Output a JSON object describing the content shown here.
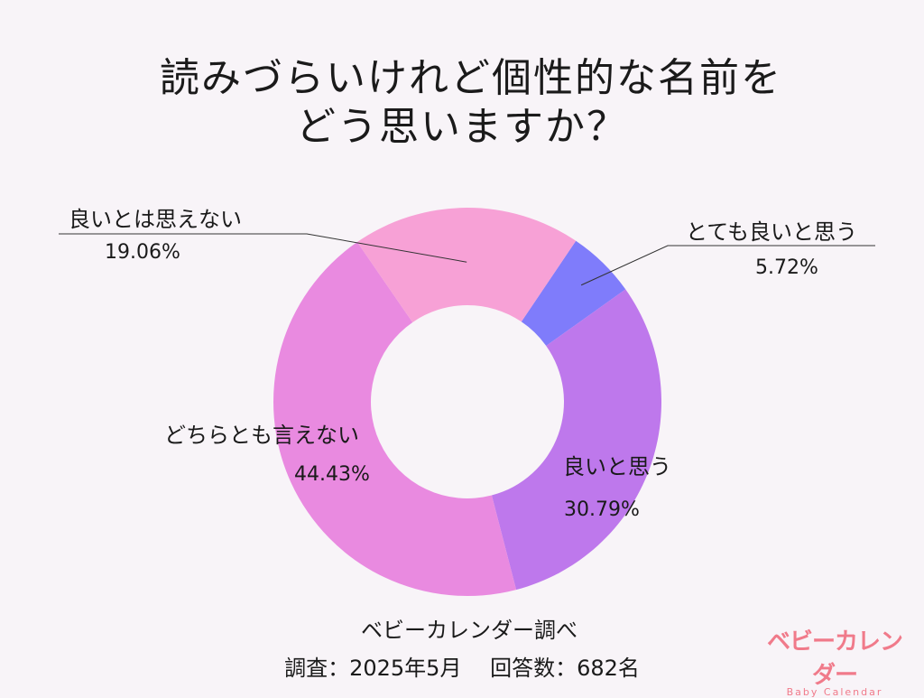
{
  "title_line1": "読みづらいけれど個性的な名前を",
  "title_line2": "どう思いますか？",
  "chart_data": {
    "type": "pie",
    "title": "読みづらいけれど個性的な名前をどう思いますか？",
    "slices": [
      {
        "label": "とても良いと思う",
        "value": 5.72,
        "display": "5.72%",
        "color": "#7f7cfb"
      },
      {
        "label": "良いと思う",
        "value": 30.79,
        "display": "30.79%",
        "color": "#be78ec"
      },
      {
        "label": "どちらとも言えない",
        "value": 44.43,
        "display": "44.43%",
        "color": "#e98ae0"
      },
      {
        "label": "良いとは思えない",
        "value": 19.06,
        "display": "19.06%",
        "color": "#f7a1d6"
      }
    ]
  },
  "footer": {
    "source": "ベビーカレンダー調べ",
    "survey": "調査：2025年5月　 回答数：682名"
  },
  "logo": {
    "main": "ベビーカレンダー",
    "sub": "Baby Calendar"
  }
}
